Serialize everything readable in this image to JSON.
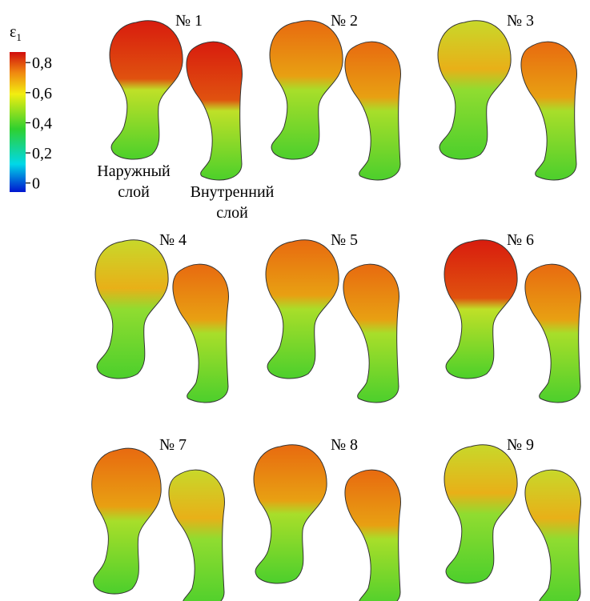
{
  "colorbar": {
    "label": "ε",
    "label_subscript": "1",
    "lim": [
      -0.06,
      0.87
    ],
    "ticks": [
      {
        "value": 0.8,
        "label": "0,8"
      },
      {
        "value": 0.6,
        "label": "0,6"
      },
      {
        "value": 0.4,
        "label": "0,4"
      },
      {
        "value": 0.2,
        "label": "0,2"
      },
      0
    ]
  },
  "layer_labels": {
    "outer": [
      "Наружный",
      "слой"
    ],
    "inner": [
      "Внутренний",
      "слой"
    ]
  },
  "panels": [
    "№ 1",
    "№ 2",
    "№ 3",
    "№ 4",
    "№ 5",
    "№ 6",
    "№ 7",
    "№ 8",
    "№ 9"
  ]
}
